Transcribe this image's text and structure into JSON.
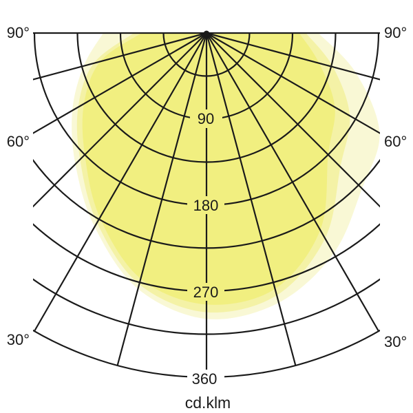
{
  "labels": {
    "a90": "90°",
    "a60": "60°",
    "a30": "30°",
    "r1": "90",
    "r2": "180",
    "r3": "270",
    "r4": "360",
    "unit": "cd.klm"
  },
  "chart_data": {
    "type": "polar",
    "subtype": "luminaire-light-distribution-curve",
    "title": "",
    "unit_label": "cd.klm",
    "orientation": "pole at top center, 0° points straight down, angles increase to ±90° at horizontal",
    "angle_tick_labels_both_sides": [
      "90°",
      "60°",
      "30°"
    ],
    "angle_grid_step_deg": 15,
    "angle_grid_deg": [
      -90,
      -75,
      -60,
      -45,
      -30,
      -15,
      0,
      15,
      30,
      45,
      60,
      75,
      90
    ],
    "radial_grid_values": [
      45,
      90,
      135,
      180,
      225,
      270,
      315,
      360
    ],
    "radial_label_values": [
      "90",
      "180",
      "270",
      "360"
    ],
    "radial_axis_max": 360,
    "grid_on": true,
    "angles_deg": [
      -90,
      -75,
      -60,
      -45,
      -30,
      -15,
      0,
      15,
      30,
      45,
      60,
      75,
      90
    ],
    "series": [
      {
        "name": "outer-pale-lobe",
        "color": "#f9f8d5",
        "values": [
          108,
          133,
          162,
          194,
          234,
          277,
          299,
          292,
          266,
          230,
          209,
          162,
          117
        ]
      },
      {
        "name": "mid-light-lobe",
        "color": "#f4f2a6",
        "values": [
          76,
          122,
          155,
          187,
          229,
          272,
          292,
          284,
          248,
          198,
          173,
          137,
          104
        ]
      },
      {
        "name": "main-lobe",
        "color": "#f1ef80",
        "values": [
          68,
          115,
          148,
          180,
          223,
          266,
          284,
          277,
          238,
          180,
          155,
          122,
          97
        ]
      }
    ],
    "colors": {
      "grid": "#1a1a1a",
      "background": "#ffffff"
    }
  }
}
